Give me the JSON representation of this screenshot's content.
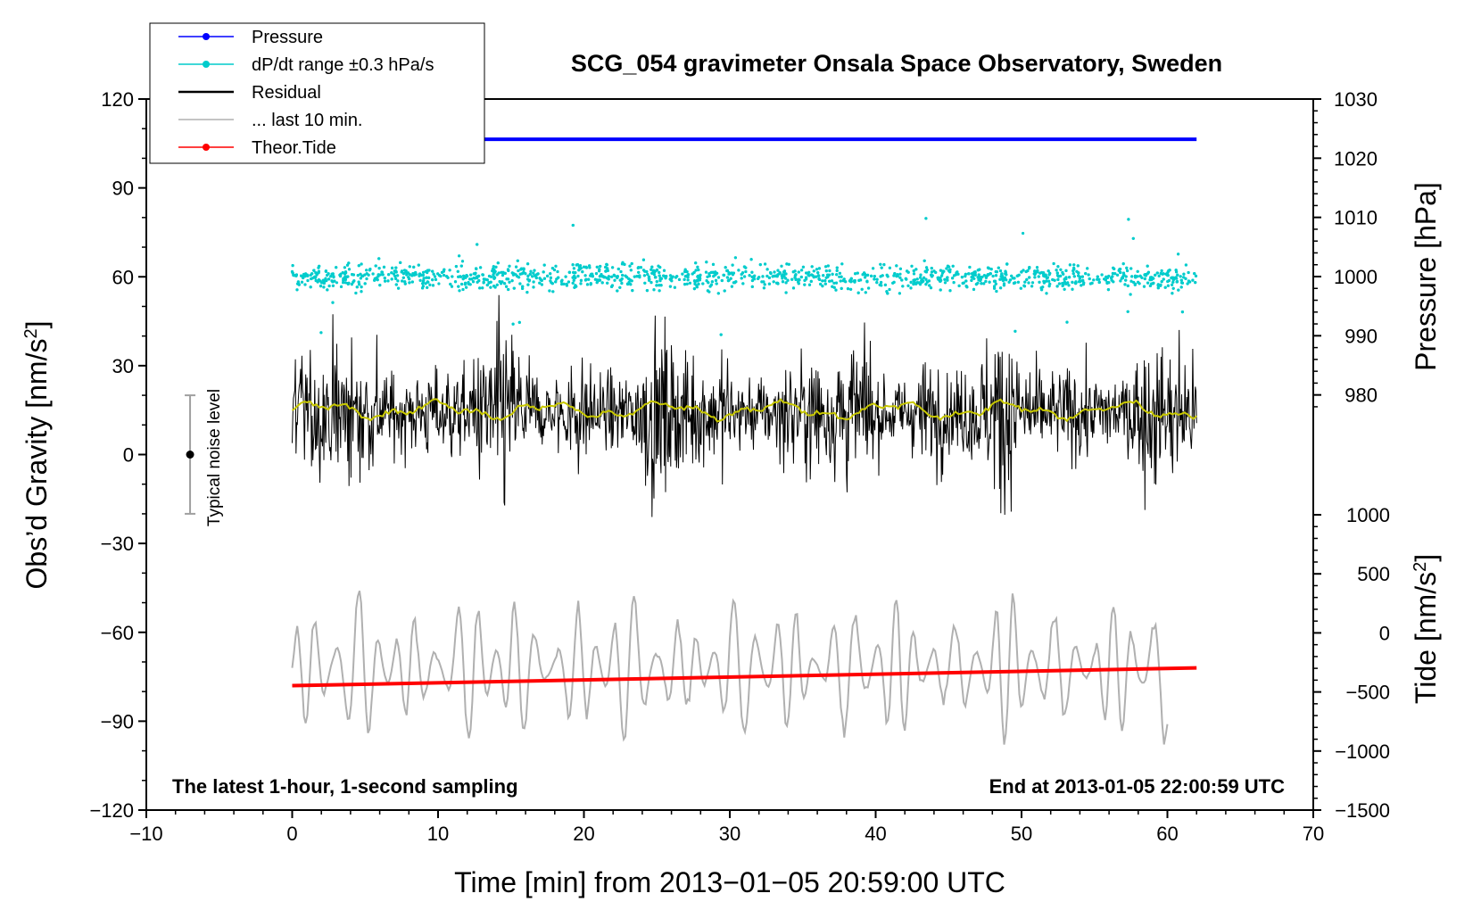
{
  "chart_data": {
    "type": "line",
    "title": "SCG_054 gravimeter Onsala Space Observatory, Sweden",
    "xlabel": "Time [min] from 2013−01−05 20:59:00 UTC",
    "ylabel_left_main": "Obs’d Gravity [nm/s",
    "ylabel_left_sup": "2",
    "ylabel_left_end": "]",
    "ylabel_right_pressure": "Pressure [hPa]",
    "ylabel_right_tide_main": "Tide [nm/s",
    "ylabel_right_tide_sup": "2",
    "ylabel_right_tide_end": "]",
    "xlim": [
      -10,
      70
    ],
    "ylim_left": [
      -120,
      120
    ],
    "ylim_pressure": [
      970,
      1030
    ],
    "ylim_tide": [
      -1500,
      1000
    ],
    "xticks": [
      "−10",
      "0",
      "10",
      "20",
      "30",
      "40",
      "50",
      "60",
      "70"
    ],
    "yticks_left": [
      "120",
      "90",
      "60",
      "30",
      "0",
      "−30",
      "−60",
      "−90",
      "−120"
    ],
    "yticks_pressure": [
      "1030",
      "1020",
      "1010",
      "1000",
      "990",
      "980"
    ],
    "yticks_tide": [
      "1000",
      "500",
      "0",
      "−500",
      "−1000",
      "−1500"
    ],
    "annotation_left": "The latest 1-hour, 1-second sampling",
    "annotation_right": "End at 2013-01-05 22:00:59 UTC",
    "noise_label": "Typical noise level",
    "noise_bar": {
      "x": -7,
      "center": 0,
      "low": -20,
      "high": 20
    },
    "legend": [
      {
        "label": "Pressure",
        "color": "#0000ff"
      },
      {
        "label": "dP/dt range ±0.3 hPa/s",
        "color": "#00cccc"
      },
      {
        "label": "Residual",
        "color": "#000000"
      },
      {
        "label": "... last 10 min.",
        "color": "#b0b0b0"
      },
      {
        "label": "Theor.Tide",
        "color": "#ff0000"
      }
    ],
    "series": [
      {
        "name": "Pressure",
        "axis": "pressure",
        "x": [
          0,
          62
        ],
        "y": [
          1023.2,
          1023.2
        ],
        "start_x_visible": 13
      },
      {
        "name": "dP/dt range",
        "axis": "left",
        "center": 60,
        "spread": 3,
        "x_range": [
          0,
          62
        ]
      },
      {
        "name": "Residual",
        "axis": "left",
        "center": 14,
        "x_range": [
          0,
          62
        ]
      },
      {
        "name": "Residual running mean",
        "axis": "left",
        "center": 15,
        "x_range": [
          0,
          62
        ]
      },
      {
        "name": "last 10 min.",
        "axis": "left",
        "center": -72,
        "x_range": [
          0,
          60
        ]
      },
      {
        "name": "Theor.Tide",
        "axis": "left",
        "x": [
          0,
          62
        ],
        "y": [
          -78,
          -72
        ]
      }
    ],
    "colors": {
      "pressure": "#0000ff",
      "dpdt": "#00cccc",
      "residual": "#000000",
      "residual_mean": "#c8c800",
      "last10": "#b0b0b0",
      "tide": "#ff0000",
      "noise_bar": "#a0a0a0"
    }
  }
}
